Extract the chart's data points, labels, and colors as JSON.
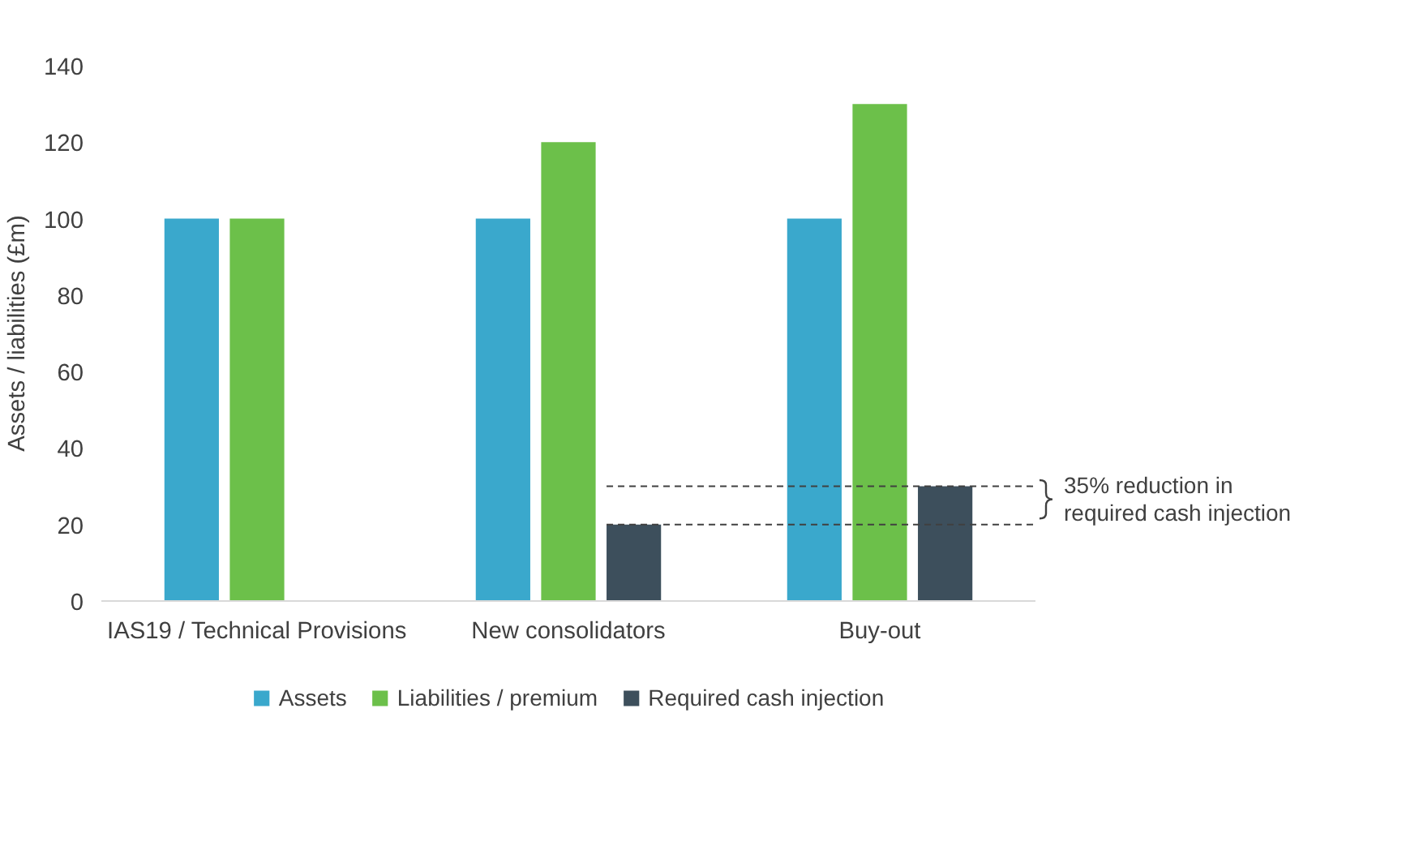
{
  "chart_data": {
    "type": "bar",
    "ylabel": "Assets / liabilities (£m)",
    "categories": [
      "IAS19 / Technical Provisions",
      "New consolidators",
      "Buy-out"
    ],
    "series": [
      {
        "name": "Assets",
        "color": "#3aa8cc",
        "values": [
          100,
          100,
          100
        ]
      },
      {
        "name": "Liabilities / premium",
        "color": "#6cc04a",
        "values": [
          100,
          120,
          130
        ]
      },
      {
        "name": "Required cash injection",
        "color": "#3d4f5c",
        "values": [
          null,
          20,
          30
        ]
      }
    ],
    "ylim": [
      0,
      140
    ],
    "yticks": [
      0,
      20,
      40,
      60,
      80,
      100,
      120,
      140
    ],
    "grid": false,
    "legend": "bottom",
    "ref_lines": [
      {
        "axis": "y",
        "value": 30,
        "label": null,
        "color": "#404040",
        "line_style": "dashed"
      },
      {
        "axis": "y",
        "value": 20,
        "label": null,
        "color": "#404040",
        "line_style": "dashed"
      }
    ],
    "annotations": [
      "35% reduction in\nrequired cash injection"
    ]
  }
}
